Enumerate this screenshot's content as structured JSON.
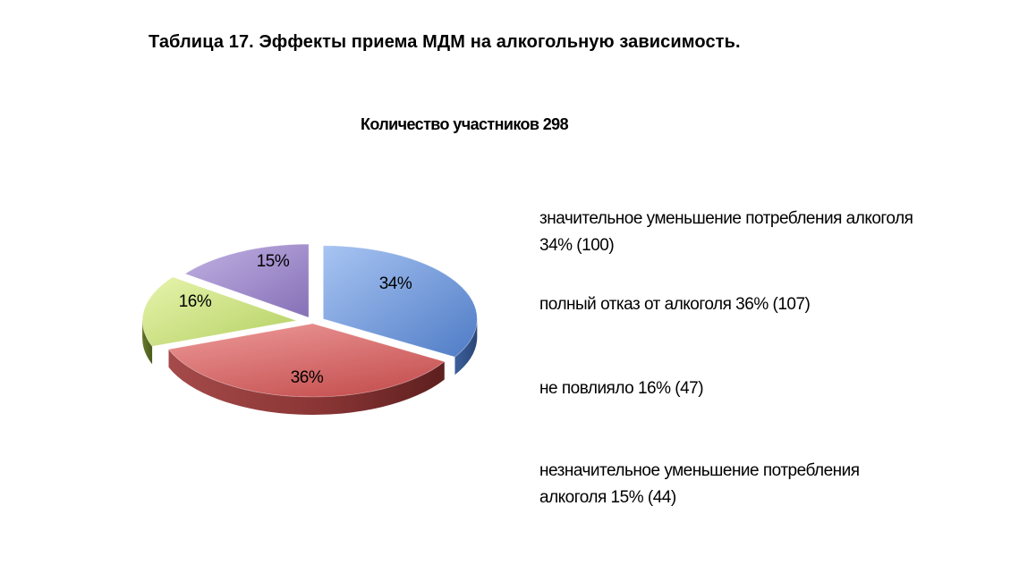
{
  "page": {
    "title": "Таблица 17. Эффекты приема МДМ  на алкогольную зависимость."
  },
  "chart_data": {
    "type": "pie",
    "title": "Количество участников 298",
    "legend_position": "right",
    "series": [
      {
        "legend": "значительное уменьшение потребления алкоголя 34% (100)",
        "label": "34%",
        "value": 34,
        "count": 100,
        "color": "#6b93d6"
      },
      {
        "legend": "полный отказ от алкоголя 36% (107)",
        "label": "36%",
        "value": 36,
        "count": 107,
        "color": "#d46a6a"
      },
      {
        "legend": "не повлияло 16% (47)",
        "label": "16%",
        "value": 16,
        "count": 47,
        "color": "#c6df7c"
      },
      {
        "legend": "незначительное уменьшение потребления алкоголя 15% (44)",
        "label": "15%",
        "value": 15,
        "count": 44,
        "color": "#9b84c6"
      }
    ]
  }
}
